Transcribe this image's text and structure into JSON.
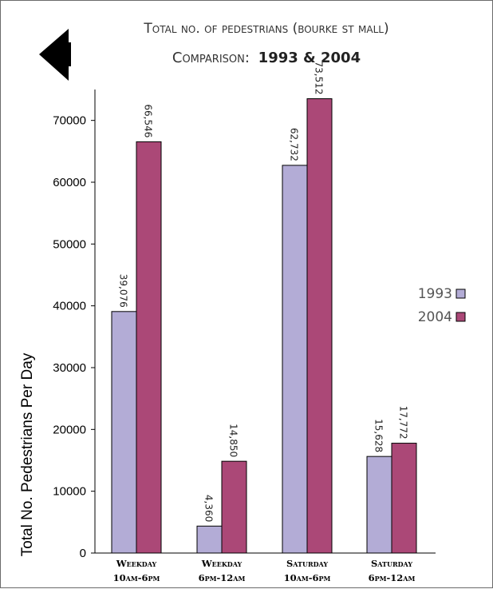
{
  "title_line1": "Total no. of pedestrians (bourke st mall)",
  "title_line2_prefix": "Comparison:",
  "title_line2_bold": "1993 & 2004",
  "back_arrow_icon": "back-arrow-icon",
  "colors": {
    "s1993": "#b3acd6",
    "s2004": "#ab4877",
    "stroke": "#000000"
  },
  "chart_data": {
    "type": "bar",
    "title": "Total no. of pedestrians (bourke st mall) Comparison: 1993 & 2004",
    "ylabel": "Total No. Pedestrians Per Day",
    "xlabel": "",
    "ylim": [
      0,
      75000
    ],
    "yticks": [
      0,
      10000,
      20000,
      30000,
      40000,
      50000,
      60000,
      70000
    ],
    "categories": [
      [
        "Weekday",
        "10am-6pm"
      ],
      [
        "Weekday",
        "6pm-12am"
      ],
      [
        "Saturday",
        "10am-6pm"
      ],
      [
        "Saturday",
        "6pm-12am"
      ]
    ],
    "series": [
      {
        "name": "1993",
        "values": [
          39076,
          4360,
          62732,
          15628
        ],
        "labels": [
          "39,076",
          "4,360",
          "62,732",
          "15,628"
        ]
      },
      {
        "name": "2004",
        "values": [
          66546,
          14850,
          73512,
          17772
        ],
        "labels": [
          "66,546",
          "14,850",
          "73,512",
          "17,772"
        ]
      }
    ],
    "legend": "right",
    "grid": false
  }
}
